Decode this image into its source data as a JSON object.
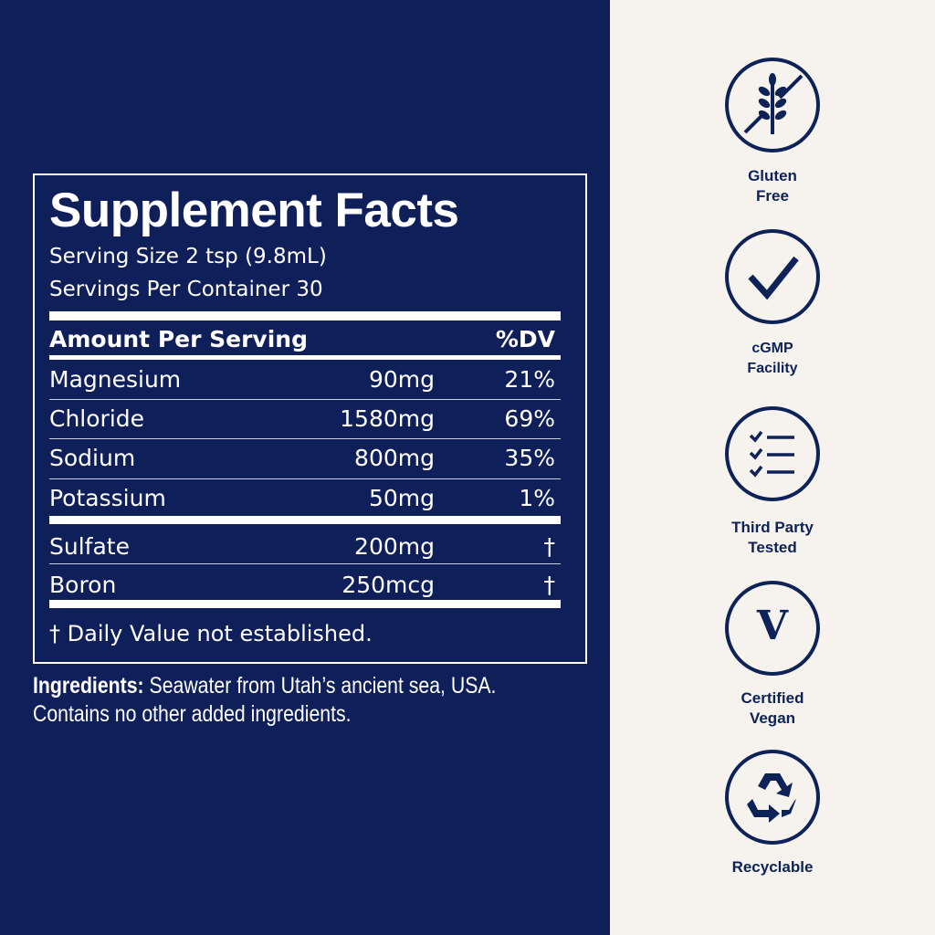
{
  "colors": {
    "panel": "#0f1f5a",
    "side": "#f6f2ed",
    "icon": "#0d2257"
  },
  "facts": {
    "title": "Supplement Facts",
    "serving_size": "Serving Size 2 tsp (9.8mL)",
    "servings_per_container": "Servings Per Container 30",
    "header": {
      "amount": "Amount Per Serving",
      "dv": "%DV"
    },
    "rows": [
      {
        "name": "Magnesium",
        "amount": "90mg",
        "dv": "21%"
      },
      {
        "name": "Chloride",
        "amount": "1580mg",
        "dv": "69%"
      },
      {
        "name": "Sodium",
        "amount": "800mg",
        "dv": "35%"
      },
      {
        "name": "Potassium",
        "amount": "50mg",
        "dv": "1%"
      },
      {
        "name": "Sulfate",
        "amount": "200mg",
        "dv": "†"
      },
      {
        "name": "Boron",
        "amount": "250mcg",
        "dv": "†"
      }
    ],
    "footnote": "† Daily Value not established."
  },
  "ingredients": {
    "label": "Ingredients:",
    "text1": " Seawater from Utah’s ancient sea, USA.",
    "text2": "Contains no other added ingredients."
  },
  "badges": [
    {
      "icon": "gluten-free-icon",
      "line1": "Gluten",
      "line2": "Free"
    },
    {
      "icon": "checkmark-icon",
      "line1": "cGMP",
      "line2": "Facility"
    },
    {
      "icon": "checklist-icon",
      "line1": "Third Party",
      "line2": "Tested"
    },
    {
      "icon": "vegan-v-icon",
      "line1": "Certified",
      "line2": "Vegan",
      "glyph": "V"
    },
    {
      "icon": "recycle-icon",
      "line1": "Recyclable",
      "line2": ""
    }
  ]
}
